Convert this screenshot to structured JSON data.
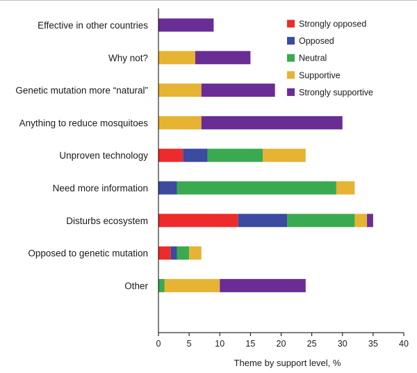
{
  "chart_data": {
    "type": "bar",
    "orientation": "horizontal",
    "stacked": true,
    "categories": [
      "Effective in other countries",
      "Why not?",
      "Genetic mutation more “natural”",
      "Anything to reduce mosquitoes",
      "Unproven technology",
      "Need more information",
      "Disturbs ecosystem",
      "Opposed to genetic mutation",
      "Other"
    ],
    "series": [
      {
        "name": "Strongly opposed",
        "color": "#ee2b2b",
        "values": [
          0,
          0,
          0,
          0,
          4,
          0,
          13,
          2,
          0
        ]
      },
      {
        "name": "Opposed",
        "color": "#3c4aa0",
        "values": [
          0,
          0,
          0,
          0,
          4,
          3,
          8,
          1,
          0
        ]
      },
      {
        "name": "Neutral",
        "color": "#3aaa50",
        "values": [
          0,
          0,
          0,
          0,
          9,
          26,
          11,
          2,
          1
        ]
      },
      {
        "name": "Supportive",
        "color": "#e6b333",
        "values": [
          0,
          6,
          7,
          7,
          7,
          3,
          2,
          2,
          9
        ]
      },
      {
        "name": "Strongly supportive",
        "color": "#6a2d96",
        "values": [
          9,
          9,
          12,
          23,
          0,
          0,
          1,
          0,
          14
        ]
      }
    ],
    "xlabel": "Theme by support level, %",
    "ylabel": "",
    "xlim": [
      0,
      40
    ],
    "xticks": [
      "0",
      "5",
      "10",
      "15",
      "20",
      "25",
      "30",
      "35",
      "40"
    ],
    "grid": false,
    "legend_position": "top-right"
  }
}
